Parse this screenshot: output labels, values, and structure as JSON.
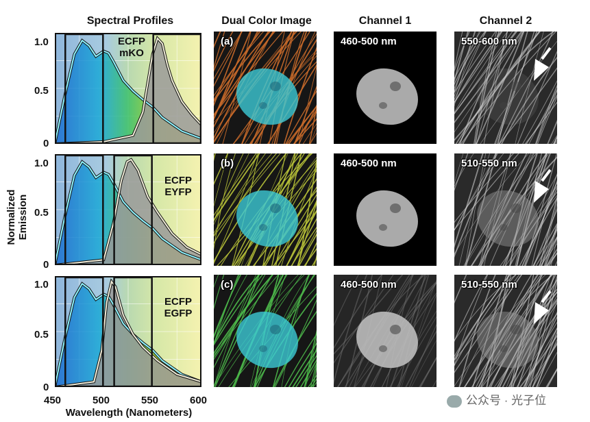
{
  "headers": {
    "spectral": "Spectral Profiles",
    "dual": "Dual Color Image",
    "ch1": "Channel 1",
    "ch2": "Channel 2"
  },
  "axes": {
    "ylabel": "Normalized Emission",
    "xlabel": "Wavelength (Nanometers)",
    "yticks": [
      "1.0",
      "0.5",
      "0"
    ],
    "xticks": [
      "450",
      "500",
      "550",
      "600"
    ]
  },
  "rows": [
    {
      "id": "a",
      "panel_label": "(a)",
      "fp1": "ECFP",
      "fp2": "mKO",
      "ch1_label": "460-500 nm",
      "ch2_label": "550-600 nm",
      "fiber_color": "#c96a2a"
    },
    {
      "id": "b",
      "panel_label": "(b)",
      "fp1": "ECFP",
      "fp2": "EYFP",
      "ch1_label": "460-500 nm",
      "ch2_label": "510-550 nm",
      "fiber_color": "#b8c238"
    },
    {
      "id": "c",
      "panel_label": "(c)",
      "fp1": "ECFP",
      "fp2": "EGFP",
      "ch1_label": "460-500 nm",
      "ch2_label": "510-550 nm",
      "fiber_color": "#4db84a"
    }
  ],
  "watermark": "公众号 · 光子位",
  "colors": {
    "nucleus": "#3cc9d6",
    "arrow": "#ffffff"
  },
  "chart_data": [
    {
      "type": "area",
      "row": "a",
      "xlim": [
        450,
        600
      ],
      "ylim": [
        0,
        1
      ],
      "series": [
        {
          "name": "ECFP",
          "x": [
            450,
            460,
            470,
            478,
            485,
            492,
            500,
            505,
            510,
            520,
            530,
            540,
            550,
            560,
            580,
            600
          ],
          "y": [
            0.0,
            0.45,
            0.85,
            0.98,
            0.93,
            0.83,
            0.88,
            0.86,
            0.78,
            0.6,
            0.5,
            0.42,
            0.35,
            0.25,
            0.12,
            0.05
          ]
        },
        {
          "name": "mKO",
          "x": [
            450,
            500,
            530,
            540,
            550,
            555,
            560,
            565,
            570,
            580,
            590,
            600
          ],
          "y": [
            0.0,
            0.02,
            0.08,
            0.3,
            0.85,
            1.0,
            0.95,
            0.75,
            0.6,
            0.4,
            0.28,
            0.18
          ]
        }
      ],
      "channels": [
        [
          460,
          500
        ],
        [
          550,
          600
        ]
      ]
    },
    {
      "type": "area",
      "row": "b",
      "xlim": [
        450,
        600
      ],
      "ylim": [
        0,
        1
      ],
      "series": [
        {
          "name": "ECFP",
          "x": [
            450,
            460,
            470,
            478,
            485,
            492,
            500,
            505,
            510,
            520,
            530,
            540,
            550,
            560,
            580,
            600
          ],
          "y": [
            0.0,
            0.45,
            0.85,
            0.98,
            0.93,
            0.83,
            0.88,
            0.86,
            0.78,
            0.6,
            0.5,
            0.42,
            0.35,
            0.25,
            0.12,
            0.05
          ]
        },
        {
          "name": "EYFP",
          "x": [
            450,
            500,
            510,
            518,
            524,
            528,
            535,
            545,
            555,
            570,
            585,
            600
          ],
          "y": [
            0.0,
            0.05,
            0.4,
            0.8,
            0.98,
            1.0,
            0.9,
            0.65,
            0.5,
            0.3,
            0.17,
            0.1
          ]
        }
      ],
      "channels": [
        [
          460,
          500
        ],
        [
          510,
          550
        ]
      ]
    },
    {
      "type": "area",
      "row": "c",
      "xlim": [
        450,
        600
      ],
      "ylim": [
        0,
        1
      ],
      "series": [
        {
          "name": "ECFP",
          "x": [
            450,
            460,
            470,
            478,
            485,
            492,
            500,
            505,
            510,
            520,
            530,
            540,
            550,
            560,
            580,
            600
          ],
          "y": [
            0.0,
            0.45,
            0.85,
            0.98,
            0.93,
            0.83,
            0.88,
            0.86,
            0.78,
            0.6,
            0.5,
            0.42,
            0.35,
            0.25,
            0.12,
            0.05
          ]
        },
        {
          "name": "EGFP",
          "x": [
            450,
            490,
            498,
            503,
            508,
            512,
            520,
            530,
            540,
            555,
            575,
            600
          ],
          "y": [
            0.0,
            0.05,
            0.35,
            0.8,
            1.0,
            0.95,
            0.68,
            0.5,
            0.38,
            0.25,
            0.12,
            0.05
          ]
        }
      ],
      "channels": [
        [
          460,
          500
        ],
        [
          510,
          550
        ]
      ]
    }
  ]
}
